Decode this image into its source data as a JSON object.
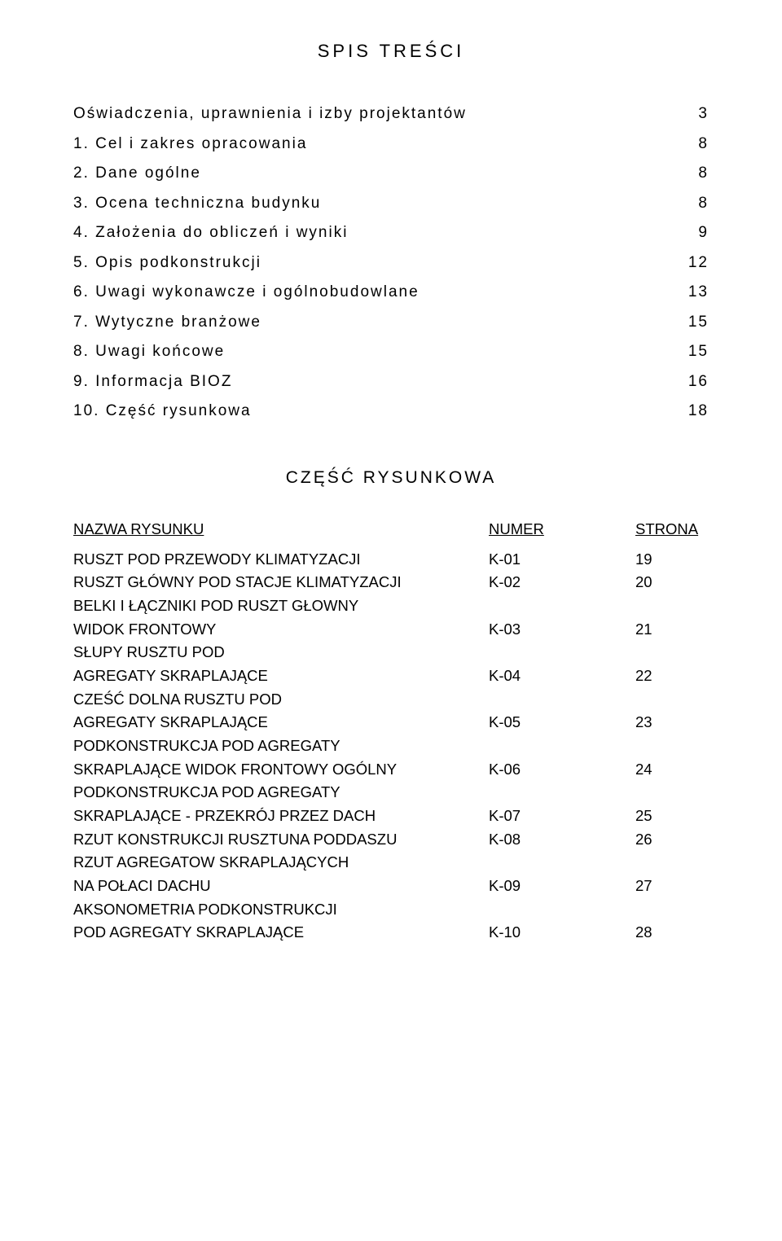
{
  "title": "SPIS TREŚCI",
  "toc": [
    {
      "label": "Oświadczenia, uprawnienia i izby projektantów",
      "page": "3"
    },
    {
      "label": "1. Cel i zakres opracowania",
      "page": "8"
    },
    {
      "label": "2. Dane ogólne",
      "page": "8"
    },
    {
      "label": "3. Ocena techniczna budynku",
      "page": "8"
    },
    {
      "label": "4. Założenia do obliczeń i wyniki",
      "page": "9"
    },
    {
      "label": "5. Opis podkonstrukcji",
      "page": "12"
    },
    {
      "label": "6. Uwagi wykonawcze i ogólnobudowlane",
      "page": "13"
    },
    {
      "label": "7. Wytyczne branżowe",
      "page": "15"
    },
    {
      "label": "8. Uwagi końcowe",
      "page": "15"
    },
    {
      "label": "9. Informacja BIOZ",
      "page": "16"
    },
    {
      "label": "10. Część rysunkowa",
      "page": "18"
    }
  ],
  "drawings_title": "CZĘŚĆ RYSUNKOWA",
  "drawings_header": {
    "name": "NAZWA RYSUNKU",
    "num": "NUMER",
    "page": "STRONA"
  },
  "drawings": [
    {
      "lines": [
        "RUSZT POD PRZEWODY KLIMATYZACJI"
      ],
      "num": "K-01",
      "page": "19"
    },
    {
      "lines": [
        "RUSZT GŁÓWNY POD STACJE KLIMATYZACJI"
      ],
      "num": "K-02",
      "page": "20"
    },
    {
      "lines": [
        "BELKI I ŁĄCZNIKI POD RUSZT GŁOWNY",
        "WIDOK FRONTOWY"
      ],
      "num": "K-03",
      "page": "21"
    },
    {
      "lines": [
        "SŁUPY RUSZTU POD",
        "AGREGATY SKRAPLAJĄCE"
      ],
      "num": "K-04",
      "page": "22"
    },
    {
      "lines": [
        "CZEŚĆ DOLNA RUSZTU POD",
        "AGREGATY SKRAPLAJĄCE"
      ],
      "num": "K-05",
      "page": "23"
    },
    {
      "lines": [
        "PODKONSTRUKCJA POD AGREGATY",
        "SKRAPLAJĄCE WIDOK FRONTOWY OGÓLNY"
      ],
      "num": "K-06",
      "page": "24"
    },
    {
      "lines": [
        "PODKONSTRUKCJA POD AGREGATY",
        "SKRAPLAJĄCE - PRZEKRÓJ PRZEZ DACH"
      ],
      "num": "K-07",
      "page": "25"
    },
    {
      "lines": [
        "RZUT KONSTRUKCJI RUSZTUNA PODDASZU"
      ],
      "num": "K-08",
      "page": "26"
    },
    {
      "lines": [
        "RZUT AGREGATOW SKRAPLAJĄCYCH",
        "NA POŁACI DACHU"
      ],
      "num": "K-09",
      "page": "27"
    },
    {
      "lines": [
        "AKSONOMETRIA PODKONSTRUKCJI",
        "POD AGREGATY SKRAPLAJĄCE"
      ],
      "num": "K-10",
      "page": "28"
    }
  ]
}
